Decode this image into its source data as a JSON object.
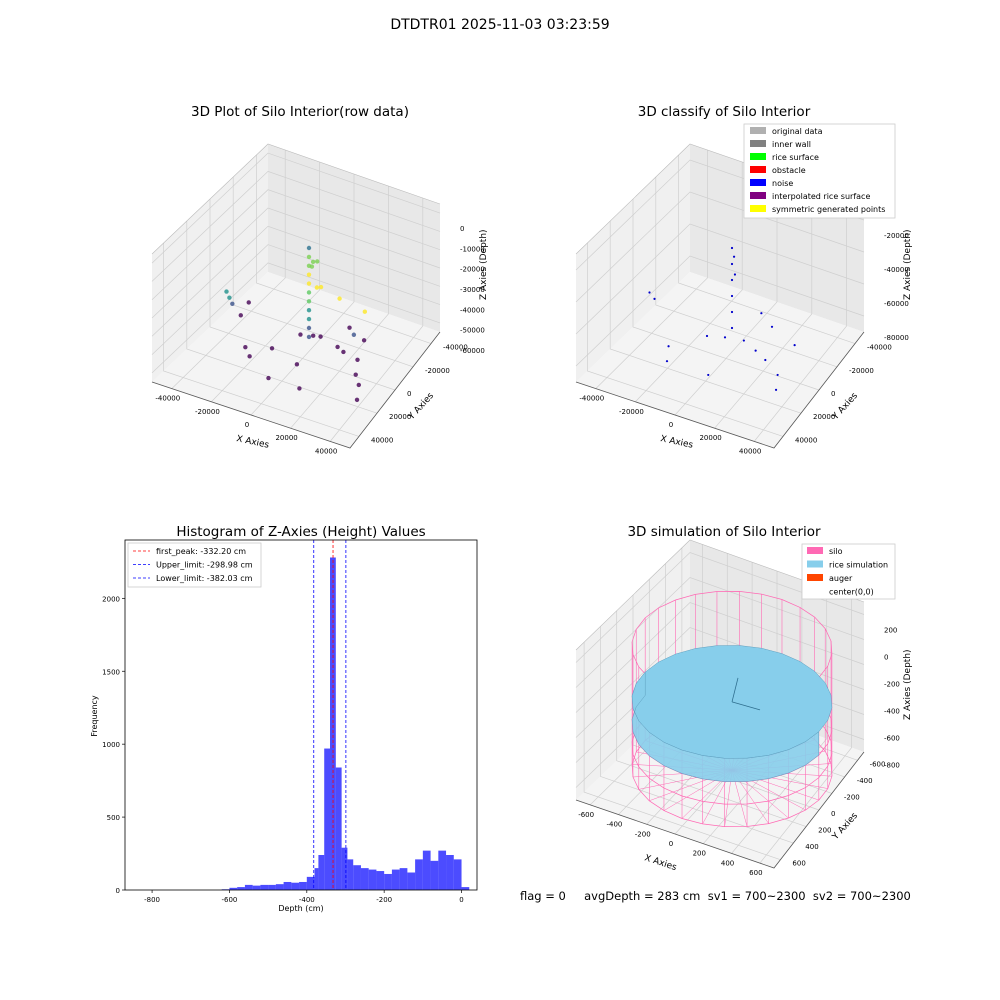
{
  "figure": {
    "suptitle": "DTDTR01 2025-11-03 03:23:59",
    "status": "flag = 0     avgDepth = 283 cm  sv1 = 700~2300  sv2 = 700~2300"
  },
  "chart_data": [
    {
      "type": "scatter",
      "title": "3D Plot of Silo Interior(row data)",
      "xlabel": "X Axies",
      "ylabel": "Y Axies",
      "zlabel": "Z Axies (Depth)",
      "x_ticks": [
        "-40000",
        "-20000",
        "0",
        "20000",
        "40000"
      ],
      "y_ticks": [
        "-40000",
        "-20000",
        "0",
        "20000",
        "40000"
      ],
      "z_ticks": [
        "0",
        "-10000",
        "-20000",
        "-30000",
        "-40000",
        "-50000",
        "-60000"
      ],
      "xlim": [
        -48000,
        48000
      ],
      "ylim": [
        -48000,
        48000
      ],
      "zlim": [
        -68000,
        4000
      ],
      "colormap": "viridis",
      "points": [
        {
          "x": 0,
          "y": 0,
          "z": -5000
        },
        {
          "x": 0,
          "y": 0,
          "z": -10000
        },
        {
          "x": 0,
          "y": 0,
          "z": -15000
        },
        {
          "x": 0,
          "y": 0,
          "z": -20000
        },
        {
          "x": 0,
          "y": 0,
          "z": -25000
        },
        {
          "x": 0,
          "y": 0,
          "z": -30000
        },
        {
          "x": 0,
          "y": 0,
          "z": -35000
        },
        {
          "x": 0,
          "y": 0,
          "z": -40000
        },
        {
          "x": 0,
          "y": 0,
          "z": -45000
        },
        {
          "x": 0,
          "y": 0,
          "z": -50000
        },
        {
          "x": 0,
          "y": 0,
          "z": -55000
        },
        {
          "x": 2000,
          "y": 0,
          "z": -12000
        },
        {
          "x": 4000,
          "y": 0,
          "z": -11000
        },
        {
          "x": 2000,
          "y": 1000,
          "z": -14000
        },
        {
          "x": 5000,
          "y": 2000,
          "z": -24000
        },
        {
          "x": 7000,
          "y": 2000,
          "z": -23000
        },
        {
          "x": 16000,
          "y": 2000,
          "z": -26000
        },
        {
          "x": 30000,
          "y": 5000,
          "z": -26000
        },
        {
          "x": 20000,
          "y": -3000,
          "z": -48000
        },
        {
          "x": -40000,
          "y": 0,
          "z": -45000
        },
        {
          "x": -38000,
          "y": 1000,
          "z": -47000
        },
        {
          "x": -36000,
          "y": 2000,
          "z": -49000
        },
        {
          "x": -36000,
          "y": -5000,
          "z": -60000
        },
        {
          "x": -38000,
          "y": -15000,
          "z": -60000
        },
        {
          "x": -10000,
          "y": -10000,
          "z": -64000
        },
        {
          "x": -5000,
          "y": -12000,
          "z": -64000
        },
        {
          "x": -2000,
          "y": -13000,
          "z": -64000
        },
        {
          "x": 8000,
          "y": -10000,
          "z": -64000
        },
        {
          "x": 12000,
          "y": -8000,
          "z": -64000
        },
        {
          "x": 20000,
          "y": -6000,
          "z": -64000
        },
        {
          "x": 25000,
          "y": 4000,
          "z": -64000
        },
        {
          "x": 30000,
          "y": 10000,
          "z": -64000
        },
        {
          "x": 35000,
          "y": 20000,
          "z": -64000
        },
        {
          "x": -25000,
          "y": 10000,
          "z": -64000
        },
        {
          "x": -20000,
          "y": 15000,
          "z": -64000
        },
        {
          "x": -15000,
          "y": 5000,
          "z": -64000
        },
        {
          "x": 5000,
          "y": -25000,
          "z": -64000
        },
        {
          "x": 15000,
          "y": -20000,
          "z": -64000
        },
        {
          "x": 0,
          "y": 10000,
          "z": -64000
        },
        {
          "x": -5000,
          "y": 25000,
          "z": -64000
        },
        {
          "x": 10000,
          "y": 25000,
          "z": -64000
        }
      ]
    },
    {
      "type": "scatter",
      "title": "3D classify of Silo Interior",
      "xlabel": "X Axies",
      "ylabel": "Y Axies",
      "zlabel": "Z Axies (Depth)",
      "x_ticks": [
        "-40000",
        "-20000",
        "0",
        "20000",
        "40000"
      ],
      "y_ticks": [
        "-40000",
        "-20000",
        "0",
        "20000",
        "40000"
      ],
      "z_ticks": [
        "-20000",
        "-40000",
        "-60000",
        "-80000"
      ],
      "xlim": [
        -48000,
        48000
      ],
      "ylim": [
        -48000,
        48000
      ],
      "zlim": [
        -85000,
        -5000
      ],
      "legend_loc": "upper right",
      "legend": [
        {
          "label": "original data",
          "color": "#b0b0b0"
        },
        {
          "label": "inner wall",
          "color": "#808080"
        },
        {
          "label": "rice surface",
          "color": "#00ff00"
        },
        {
          "label": "obstacle",
          "color": "#ff0000"
        },
        {
          "label": "noise",
          "color": "#0000ff"
        },
        {
          "label": "interpolated rice surface",
          "color": "#800080"
        },
        {
          "label": "symmetric generated points",
          "color": "#ffff00"
        }
      ],
      "points": [
        {
          "x": 0,
          "y": 0,
          "z": -15000
        },
        {
          "x": 0,
          "y": 0,
          "z": -25000
        },
        {
          "x": 0,
          "y": 0,
          "z": -35000
        },
        {
          "x": 0,
          "y": 0,
          "z": -45000
        },
        {
          "x": 0,
          "y": 0,
          "z": -55000
        },
        {
          "x": 0,
          "y": 0,
          "z": -65000
        },
        {
          "x": 1000,
          "y": 0,
          "z": -20000
        },
        {
          "x": 2000,
          "y": 1000,
          "z": -30000
        },
        {
          "x": 20000,
          "y": 10000,
          "z": -40000
        },
        {
          "x": -40000,
          "y": 0,
          "z": -60000
        },
        {
          "x": -37000,
          "y": 1000,
          "z": -62000
        },
        {
          "x": -15000,
          "y": -5000,
          "z": -80000
        },
        {
          "x": -8000,
          "y": -8000,
          "z": -80000
        },
        {
          "x": 0,
          "y": -10000,
          "z": -80000
        },
        {
          "x": 8000,
          "y": -6000,
          "z": -80000
        },
        {
          "x": 15000,
          "y": -2000,
          "z": -80000
        },
        {
          "x": 25000,
          "y": 5000,
          "z": -80000
        },
        {
          "x": 30000,
          "y": 15000,
          "z": -80000
        },
        {
          "x": -25000,
          "y": 10000,
          "z": -80000
        },
        {
          "x": -20000,
          "y": 20000,
          "z": -80000
        },
        {
          "x": 5000,
          "y": -25000,
          "z": -80000
        },
        {
          "x": 20000,
          "y": -18000,
          "z": -80000
        },
        {
          "x": 0,
          "y": 20000,
          "z": -80000
        }
      ]
    },
    {
      "type": "bar",
      "title": "Histogram of Z-Axies (Height) Values",
      "xlabel": "Depth (cm)",
      "ylabel": "Frequency",
      "xlim": [
        -870,
        40
      ],
      "ylim": [
        0,
        2400
      ],
      "x_ticks": [
        -800,
        -600,
        -400,
        -200,
        0
      ],
      "y_ticks": [
        0,
        500,
        1000,
        1500,
        2000
      ],
      "bar_color": "#0000ff",
      "bin_width": 20,
      "bins": [
        {
          "x": -620,
          "value": 5
        },
        {
          "x": -600,
          "value": 15
        },
        {
          "x": -580,
          "value": 20
        },
        {
          "x": -560,
          "value": 35
        },
        {
          "x": -540,
          "value": 30
        },
        {
          "x": -520,
          "value": 35
        },
        {
          "x": -500,
          "value": 35
        },
        {
          "x": -480,
          "value": 40
        },
        {
          "x": -460,
          "value": 55
        },
        {
          "x": -440,
          "value": 50
        },
        {
          "x": -420,
          "value": 55
        },
        {
          "x": -400,
          "value": 90
        },
        {
          "x": -380,
          "value": 150
        },
        {
          "x": -370,
          "value": 240
        },
        {
          "x": -355,
          "value": 970
        },
        {
          "x": -340,
          "value": 2280
        },
        {
          "x": -325,
          "value": 840
        },
        {
          "x": -310,
          "value": 290
        },
        {
          "x": -295,
          "value": 210
        },
        {
          "x": -280,
          "value": 170
        },
        {
          "x": -260,
          "value": 150
        },
        {
          "x": -240,
          "value": 140
        },
        {
          "x": -220,
          "value": 130
        },
        {
          "x": -200,
          "value": 110
        },
        {
          "x": -180,
          "value": 140
        },
        {
          "x": -160,
          "value": 150
        },
        {
          "x": -140,
          "value": 120
        },
        {
          "x": -120,
          "value": 210
        },
        {
          "x": -100,
          "value": 270
        },
        {
          "x": -80,
          "value": 200
        },
        {
          "x": -60,
          "value": 270
        },
        {
          "x": -40,
          "value": 240
        },
        {
          "x": -20,
          "value": 210
        },
        {
          "x": 0,
          "value": 20
        }
      ],
      "vlines": [
        {
          "label": "first_peak: -332.20 cm",
          "x": -332.2,
          "color": "#ff0000"
        },
        {
          "label": "Upper_limit: -298.98 cm",
          "x": -298.98,
          "color": "#0000ff"
        },
        {
          "label": "Lower_limit: -382.03 cm",
          "x": -382.03,
          "color": "#0000ff"
        }
      ]
    },
    {
      "type": "scatter",
      "title": "3D simulation of Silo Interior",
      "xlabel": "X Axies",
      "ylabel": "Y Axies",
      "zlabel": "Z Axies (Depth)",
      "x_ticks": [
        "-600",
        "-400",
        "-200",
        "0",
        "200",
        "400",
        "600"
      ],
      "y_ticks": [
        "-600",
        "-400",
        "-200",
        "0",
        "200",
        "400",
        "600"
      ],
      "z_ticks": [
        "200",
        "0",
        "-200",
        "-400",
        "-600",
        "-800"
      ],
      "xlim": [
        -650,
        650
      ],
      "ylim": [
        -650,
        650
      ],
      "zlim": [
        -900,
        300
      ],
      "legend_loc": "upper right",
      "legend": [
        {
          "label": "silo",
          "color": "#ff69b4"
        },
        {
          "label": "rice simulation",
          "color": "#87ceeb"
        },
        {
          "label": "auger",
          "color": "#ff4500"
        },
        {
          "label": "center(0,0)",
          "color": "#ffffff"
        }
      ],
      "silo": {
        "radius": 570,
        "z_top": 150,
        "z_bottom": -830
      },
      "rice_surface_z": -283
    }
  ]
}
